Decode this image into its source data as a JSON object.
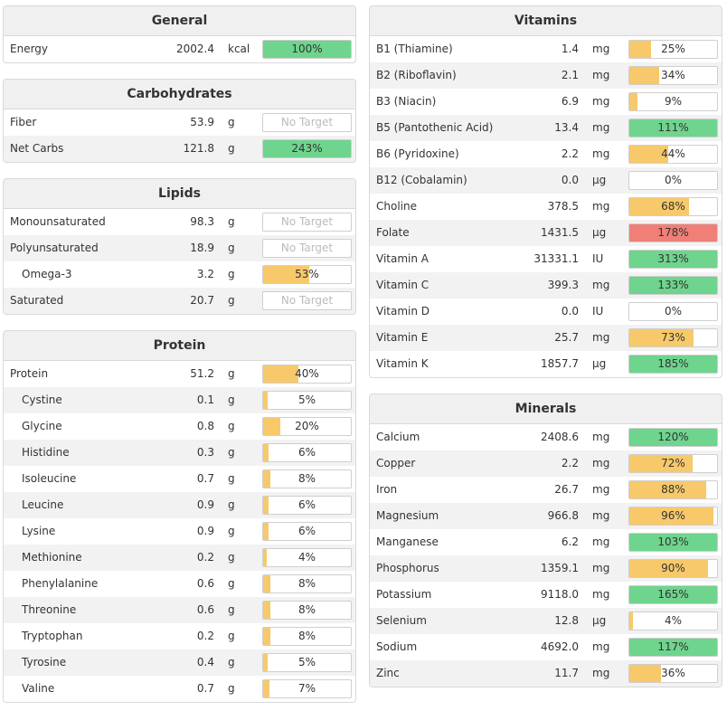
{
  "colors": {
    "yellow": "#f7c96b",
    "green": "#6fd48d",
    "red": "#ef7f77"
  },
  "left": [
    {
      "title": "General",
      "rows": [
        {
          "name": "Energy",
          "value": "2002.4",
          "unit": "kcal",
          "label": "100%",
          "pct": 100,
          "color": "green"
        }
      ]
    },
    {
      "title": "Carbohydrates",
      "rows": [
        {
          "name": "Fiber",
          "value": "53.9",
          "unit": "g",
          "label": "No Target",
          "pct": null,
          "color": null
        },
        {
          "name": "Net Carbs",
          "value": "121.8",
          "unit": "g",
          "label": "243%",
          "pct": 243,
          "color": "green"
        }
      ]
    },
    {
      "title": "Lipids",
      "rows": [
        {
          "name": "Monounsaturated",
          "value": "98.3",
          "unit": "g",
          "label": "No Target",
          "pct": null,
          "color": null
        },
        {
          "name": "Polyunsaturated",
          "value": "18.9",
          "unit": "g",
          "label": "No Target",
          "pct": null,
          "color": null
        },
        {
          "name": "Omega-3",
          "value": "3.2",
          "unit": "g",
          "label": "53%",
          "pct": 53,
          "color": "yellow",
          "sub": true
        },
        {
          "name": "Saturated",
          "value": "20.7",
          "unit": "g",
          "label": "No Target",
          "pct": null,
          "color": null
        }
      ]
    },
    {
      "title": "Protein",
      "rows": [
        {
          "name": "Protein",
          "value": "51.2",
          "unit": "g",
          "label": "40%",
          "pct": 40,
          "color": "yellow"
        },
        {
          "name": "Cystine",
          "value": "0.1",
          "unit": "g",
          "label": "5%",
          "pct": 5,
          "color": "yellow",
          "sub": true
        },
        {
          "name": "Glycine",
          "value": "0.8",
          "unit": "g",
          "label": "20%",
          "pct": 20,
          "color": "yellow",
          "sub": true
        },
        {
          "name": "Histidine",
          "value": "0.3",
          "unit": "g",
          "label": "6%",
          "pct": 6,
          "color": "yellow",
          "sub": true
        },
        {
          "name": "Isoleucine",
          "value": "0.7",
          "unit": "g",
          "label": "8%",
          "pct": 8,
          "color": "yellow",
          "sub": true
        },
        {
          "name": "Leucine",
          "value": "0.9",
          "unit": "g",
          "label": "6%",
          "pct": 6,
          "color": "yellow",
          "sub": true
        },
        {
          "name": "Lysine",
          "value": "0.9",
          "unit": "g",
          "label": "6%",
          "pct": 6,
          "color": "yellow",
          "sub": true
        },
        {
          "name": "Methionine",
          "value": "0.2",
          "unit": "g",
          "label": "4%",
          "pct": 4,
          "color": "yellow",
          "sub": true
        },
        {
          "name": "Phenylalanine",
          "value": "0.6",
          "unit": "g",
          "label": "8%",
          "pct": 8,
          "color": "yellow",
          "sub": true
        },
        {
          "name": "Threonine",
          "value": "0.6",
          "unit": "g",
          "label": "8%",
          "pct": 8,
          "color": "yellow",
          "sub": true
        },
        {
          "name": "Tryptophan",
          "value": "0.2",
          "unit": "g",
          "label": "8%",
          "pct": 8,
          "color": "yellow",
          "sub": true
        },
        {
          "name": "Tyrosine",
          "value": "0.4",
          "unit": "g",
          "label": "5%",
          "pct": 5,
          "color": "yellow",
          "sub": true
        },
        {
          "name": "Valine",
          "value": "0.7",
          "unit": "g",
          "label": "7%",
          "pct": 7,
          "color": "yellow",
          "sub": true
        }
      ]
    }
  ],
  "right": [
    {
      "title": "Vitamins",
      "rows": [
        {
          "name": "B1 (Thiamine)",
          "value": "1.4",
          "unit": "mg",
          "label": "25%",
          "pct": 25,
          "color": "yellow"
        },
        {
          "name": "B2 (Riboflavin)",
          "value": "2.1",
          "unit": "mg",
          "label": "34%",
          "pct": 34,
          "color": "yellow"
        },
        {
          "name": "B3 (Niacin)",
          "value": "6.9",
          "unit": "mg",
          "label": "9%",
          "pct": 9,
          "color": "yellow"
        },
        {
          "name": "B5 (Pantothenic Acid)",
          "value": "13.4",
          "unit": "mg",
          "label": "111%",
          "pct": 111,
          "color": "green"
        },
        {
          "name": "B6 (Pyridoxine)",
          "value": "2.2",
          "unit": "mg",
          "label": "44%",
          "pct": 44,
          "color": "yellow"
        },
        {
          "name": "B12 (Cobalamin)",
          "value": "0.0",
          "unit": "µg",
          "label": "0%",
          "pct": 0,
          "color": "yellow"
        },
        {
          "name": "Choline",
          "value": "378.5",
          "unit": "mg",
          "label": "68%",
          "pct": 68,
          "color": "yellow"
        },
        {
          "name": "Folate",
          "value": "1431.5",
          "unit": "µg",
          "label": "178%",
          "pct": 178,
          "color": "red"
        },
        {
          "name": "Vitamin A",
          "value": "31331.1",
          "unit": "IU",
          "label": "313%",
          "pct": 313,
          "color": "green"
        },
        {
          "name": "Vitamin C",
          "value": "399.3",
          "unit": "mg",
          "label": "133%",
          "pct": 133,
          "color": "green"
        },
        {
          "name": "Vitamin D",
          "value": "0.0",
          "unit": "IU",
          "label": "0%",
          "pct": 0,
          "color": "yellow"
        },
        {
          "name": "Vitamin E",
          "value": "25.7",
          "unit": "mg",
          "label": "73%",
          "pct": 73,
          "color": "yellow"
        },
        {
          "name": "Vitamin K",
          "value": "1857.7",
          "unit": "µg",
          "label": "185%",
          "pct": 185,
          "color": "green"
        }
      ]
    },
    {
      "title": "Minerals",
      "rows": [
        {
          "name": "Calcium",
          "value": "2408.6",
          "unit": "mg",
          "label": "120%",
          "pct": 120,
          "color": "green"
        },
        {
          "name": "Copper",
          "value": "2.2",
          "unit": "mg",
          "label": "72%",
          "pct": 72,
          "color": "yellow"
        },
        {
          "name": "Iron",
          "value": "26.7",
          "unit": "mg",
          "label": "88%",
          "pct": 88,
          "color": "yellow"
        },
        {
          "name": "Magnesium",
          "value": "966.8",
          "unit": "mg",
          "label": "96%",
          "pct": 96,
          "color": "yellow"
        },
        {
          "name": "Manganese",
          "value": "6.2",
          "unit": "mg",
          "label": "103%",
          "pct": 103,
          "color": "green"
        },
        {
          "name": "Phosphorus",
          "value": "1359.1",
          "unit": "mg",
          "label": "90%",
          "pct": 90,
          "color": "yellow"
        },
        {
          "name": "Potassium",
          "value": "9118.0",
          "unit": "mg",
          "label": "165%",
          "pct": 165,
          "color": "green"
        },
        {
          "name": "Selenium",
          "value": "12.8",
          "unit": "µg",
          "label": "4%",
          "pct": 4,
          "color": "yellow"
        },
        {
          "name": "Sodium",
          "value": "4692.0",
          "unit": "mg",
          "label": "117%",
          "pct": 117,
          "color": "green"
        },
        {
          "name": "Zinc",
          "value": "11.7",
          "unit": "mg",
          "label": "36%",
          "pct": 36,
          "color": "yellow"
        }
      ]
    }
  ]
}
